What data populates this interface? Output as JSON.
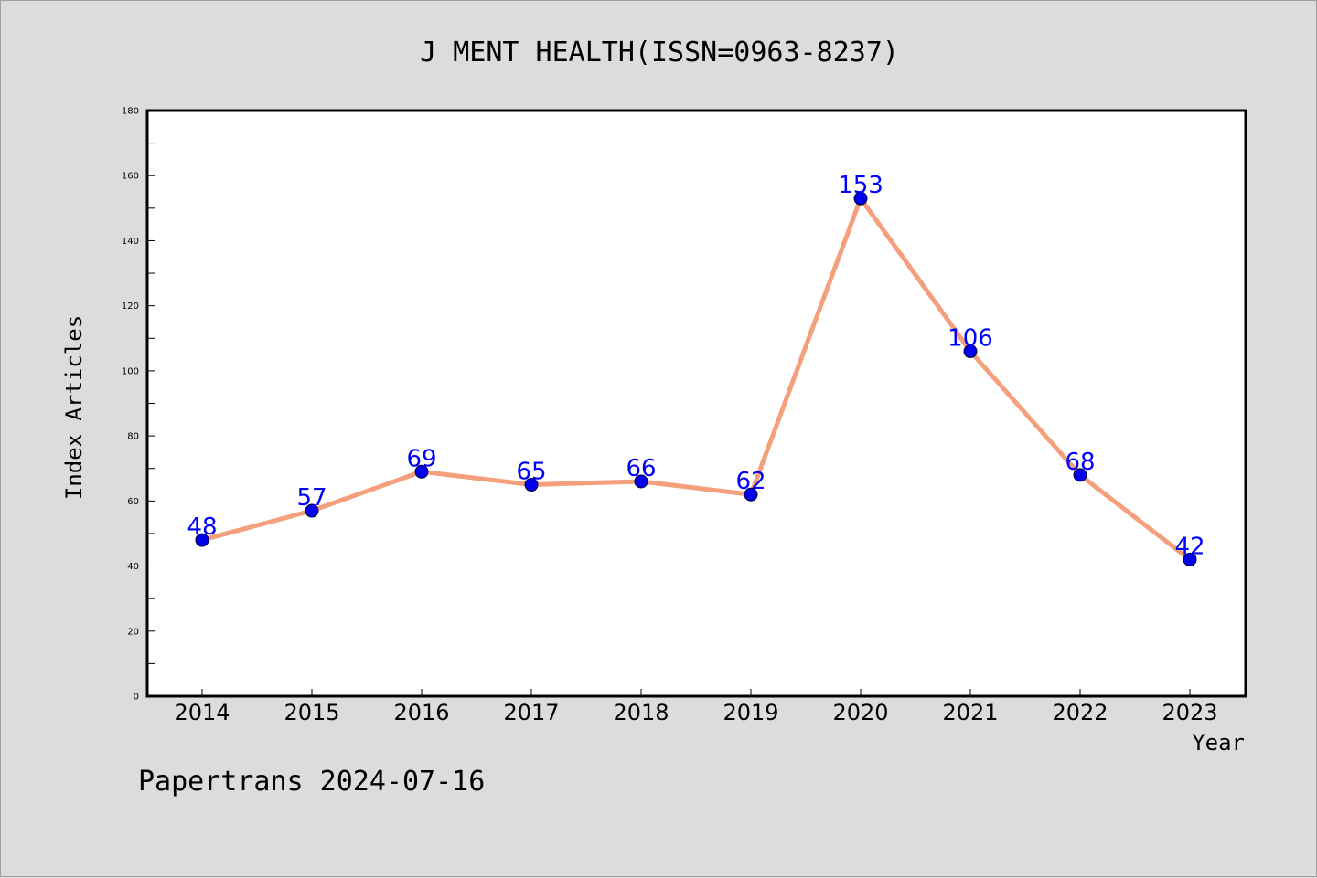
{
  "chart_data": {
    "type": "line",
    "title": "J MENT HEALTH(ISSN=0963-8237)",
    "xlabel": "Year",
    "ylabel": "Index Articles",
    "categories": [
      "2014",
      "2015",
      "2016",
      "2017",
      "2018",
      "2019",
      "2020",
      "2021",
      "2022",
      "2023"
    ],
    "values": [
      48,
      57,
      69,
      65,
      66,
      62,
      153,
      106,
      68,
      42
    ],
    "ylim": [
      0,
      180
    ],
    "yticks": [
      0,
      20,
      40,
      60,
      80,
      100,
      120,
      140,
      160,
      180
    ],
    "grid": false,
    "legend": "none",
    "line_color": "#f4a07c",
    "marker_color": "#0000ee",
    "label_color": "#0000ff"
  },
  "footer": "Papertrans 2024-07-16"
}
